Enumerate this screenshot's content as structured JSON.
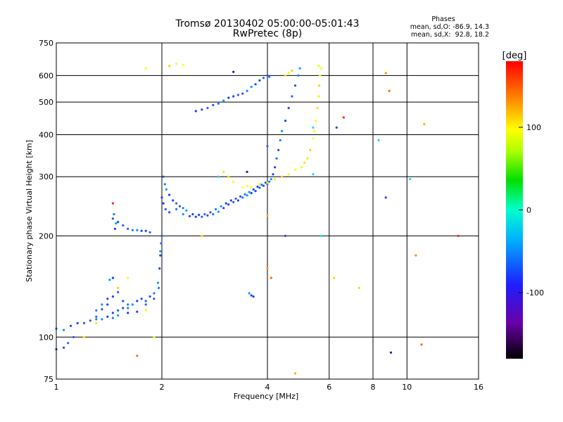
{
  "chart_data": {
    "type": "scatter",
    "title": "Tromsø 20130402 05:00:00-05:01:43",
    "subtitle": "RwPretec (8p)",
    "info": {
      "heading": "Phases",
      "line1": "mean, sd,O: -86.9, 14.3",
      "line2": "mean, sd,X:  92.8, 18.2"
    },
    "xlabel": "Frequency [MHz]",
    "ylabel": "Stationary phase Virtual Height [km]",
    "x_scale": "log",
    "y_scale": "log",
    "xlim": [
      1,
      16
    ],
    "ylim": [
      75,
      750
    ],
    "x_ticks": [
      1,
      2,
      4,
      6,
      8,
      10,
      16
    ],
    "y_ticks": [
      75,
      100,
      200,
      300,
      400,
      500,
      600,
      750
    ],
    "grid": true,
    "colorbar": {
      "label": "[deg]",
      "range": [
        -180,
        180
      ],
      "ticks": [
        -100,
        0,
        100
      ]
    },
    "series": [
      {
        "name": "O",
        "phase_mean": -86.9,
        "points": [
          [
            1.0,
            92
          ],
          [
            1.05,
            93
          ],
          [
            1.08,
            96
          ],
          [
            1.12,
            100
          ],
          [
            1.0,
            106
          ],
          [
            1.05,
            105
          ],
          [
            1.1,
            108
          ],
          [
            1.15,
            110
          ],
          [
            1.2,
            110
          ],
          [
            1.25,
            112
          ],
          [
            1.3,
            113
          ],
          [
            1.35,
            113
          ],
          [
            1.4,
            115
          ],
          [
            1.45,
            118
          ],
          [
            1.5,
            120
          ],
          [
            1.55,
            122
          ],
          [
            1.6,
            125
          ],
          [
            1.65,
            125
          ],
          [
            1.7,
            128
          ],
          [
            1.75,
            130
          ],
          [
            1.8,
            128
          ],
          [
            1.85,
            132
          ],
          [
            1.9,
            135
          ],
          [
            1.95,
            145
          ],
          [
            1.97,
            160
          ],
          [
            1.98,
            175
          ],
          [
            1.99,
            190
          ],
          [
            2.0,
            200
          ],
          [
            1.3,
            120
          ],
          [
            1.35,
            125
          ],
          [
            1.4,
            130
          ],
          [
            1.45,
            132
          ],
          [
            1.5,
            136
          ],
          [
            1.55,
            128
          ],
          [
            1.6,
            122
          ],
          [
            1.42,
            148
          ],
          [
            1.45,
            150
          ],
          [
            1.4,
            125
          ],
          [
            1.3,
            115
          ],
          [
            1.35,
            121
          ],
          [
            1.45,
            114
          ],
          [
            1.5,
            116
          ],
          [
            1.6,
            118
          ],
          [
            1.7,
            119
          ],
          [
            1.8,
            125
          ],
          [
            1.9,
            130
          ],
          [
            1.96,
            140
          ],
          [
            1.98,
            180
          ],
          [
            1.47,
            210
          ],
          [
            1.5,
            220
          ],
          [
            1.55,
            215
          ],
          [
            1.6,
            210
          ],
          [
            1.65,
            208
          ],
          [
            1.7,
            208
          ],
          [
            1.75,
            207
          ],
          [
            1.8,
            207
          ],
          [
            1.85,
            205
          ],
          [
            1.45,
            225
          ],
          [
            1.46,
            232
          ],
          [
            1.48,
            218
          ],
          [
            2.0,
            260
          ],
          [
            2.02,
            250
          ],
          [
            2.05,
            240
          ],
          [
            2.1,
            235
          ],
          [
            2.2,
            240
          ],
          [
            2.3,
            232
          ],
          [
            2.4,
            229
          ],
          [
            2.5,
            228
          ],
          [
            2.6,
            228
          ],
          [
            2.7,
            230
          ],
          [
            2.8,
            232
          ],
          [
            2.9,
            236
          ],
          [
            3.0,
            242
          ],
          [
            3.1,
            248
          ],
          [
            3.2,
            252
          ],
          [
            3.3,
            255
          ],
          [
            3.4,
            260
          ],
          [
            3.5,
            264
          ],
          [
            3.6,
            268
          ],
          [
            3.7,
            272
          ],
          [
            3.8,
            278
          ],
          [
            3.9,
            282
          ],
          [
            4.0,
            285
          ],
          [
            4.1,
            295
          ],
          [
            4.15,
            305
          ],
          [
            4.2,
            320
          ],
          [
            4.25,
            340
          ],
          [
            4.3,
            360
          ],
          [
            4.35,
            385
          ],
          [
            4.4,
            410
          ],
          [
            4.5,
            440
          ],
          [
            4.6,
            480
          ],
          [
            4.7,
            520
          ],
          [
            4.8,
            560
          ],
          [
            4.9,
            600
          ],
          [
            4.95,
            630
          ],
          [
            2.5,
            470
          ],
          [
            2.6,
            475
          ],
          [
            2.7,
            480
          ],
          [
            2.8,
            490
          ],
          [
            2.9,
            495
          ],
          [
            3.0,
            505
          ],
          [
            3.1,
            515
          ],
          [
            3.2,
            520
          ],
          [
            3.3,
            525
          ],
          [
            3.4,
            530
          ],
          [
            3.5,
            540
          ],
          [
            3.6,
            555
          ],
          [
            3.7,
            565
          ],
          [
            3.8,
            580
          ],
          [
            3.9,
            590
          ],
          [
            4.0,
            600
          ],
          [
            4.05,
            595
          ],
          [
            3.55,
            135
          ],
          [
            3.6,
            133
          ],
          [
            3.65,
            132
          ],
          [
            4.0,
            370
          ],
          [
            2.02,
            300
          ],
          [
            2.04,
            285
          ],
          [
            2.06,
            275
          ],
          [
            2.1,
            265
          ],
          [
            2.15,
            255
          ],
          [
            2.2,
            250
          ],
          [
            2.25,
            245
          ],
          [
            2.3,
            242
          ],
          [
            2.35,
            238
          ],
          [
            2.45,
            232
          ],
          [
            2.55,
            231
          ],
          [
            2.65,
            232
          ],
          [
            2.75,
            235
          ],
          [
            2.85,
            240
          ],
          [
            2.95,
            245
          ],
          [
            3.05,
            250
          ],
          [
            3.15,
            255
          ],
          [
            3.25,
            258
          ],
          [
            3.35,
            262
          ],
          [
            3.45,
            266
          ],
          [
            3.55,
            270
          ],
          [
            3.65,
            275
          ],
          [
            3.75,
            280
          ],
          [
            3.85,
            284
          ],
          [
            3.95,
            288
          ],
          [
            4.05,
            290
          ]
        ]
      },
      {
        "name": "X",
        "phase_mean": 92.8,
        "points": [
          [
            3.6,
            280
          ],
          [
            3.8,
            285
          ],
          [
            4.0,
            288
          ],
          [
            4.2,
            295
          ],
          [
            4.4,
            300
          ],
          [
            4.6,
            305
          ],
          [
            4.8,
            315
          ],
          [
            5.0,
            320
          ],
          [
            5.1,
            330
          ],
          [
            5.2,
            340
          ],
          [
            5.3,
            360
          ],
          [
            5.4,
            390
          ],
          [
            5.45,
            410
          ],
          [
            5.5,
            440
          ],
          [
            5.55,
            480
          ],
          [
            5.6,
            520
          ],
          [
            5.62,
            560
          ],
          [
            5.65,
            600
          ],
          [
            5.68,
            630
          ],
          [
            5.6,
            640
          ],
          [
            4.5,
            600
          ],
          [
            4.6,
            610
          ],
          [
            4.7,
            620
          ],
          [
            3.4,
            278
          ],
          [
            3.5,
            282
          ],
          [
            3.2,
            290
          ],
          [
            3.1,
            300
          ],
          [
            3.0,
            310
          ],
          [
            2.1,
            640
          ],
          [
            2.2,
            650
          ],
          [
            2.3,
            645
          ],
          [
            1.8,
            630
          ],
          [
            1.2,
            100
          ],
          [
            1.3,
            110
          ],
          [
            1.5,
            140
          ],
          [
            1.6,
            150
          ],
          [
            1.9,
            100
          ],
          [
            1.8,
            120
          ]
        ]
      }
    ],
    "scattered_points": [
      [
        1.7,
        88
      ],
      [
        4.8,
        78
      ],
      [
        5.4,
        420
      ],
      [
        6.3,
        420
      ],
      [
        6.6,
        450
      ],
      [
        7.3,
        140
      ],
      [
        8.3,
        385
      ],
      [
        9.0,
        90
      ],
      [
        10.6,
        175
      ],
      [
        11.0,
        95
      ],
      [
        11.2,
        430
      ],
      [
        10.2,
        295
      ],
      [
        8.7,
        260
      ],
      [
        14.0,
        200
      ],
      [
        6.2,
        150
      ],
      [
        5.4,
        305
      ],
      [
        3.2,
        615
      ],
      [
        8.7,
        610
      ],
      [
        8.9,
        540
      ],
      [
        4.0,
        230
      ],
      [
        5.7,
        200
      ],
      [
        4.5,
        200
      ],
      [
        1.45,
        250
      ],
      [
        2.6,
        200
      ],
      [
        2.9,
        300
      ],
      [
        3.5,
        310
      ],
      [
        4.0,
        160
      ],
      [
        4.1,
        150
      ]
    ]
  }
}
